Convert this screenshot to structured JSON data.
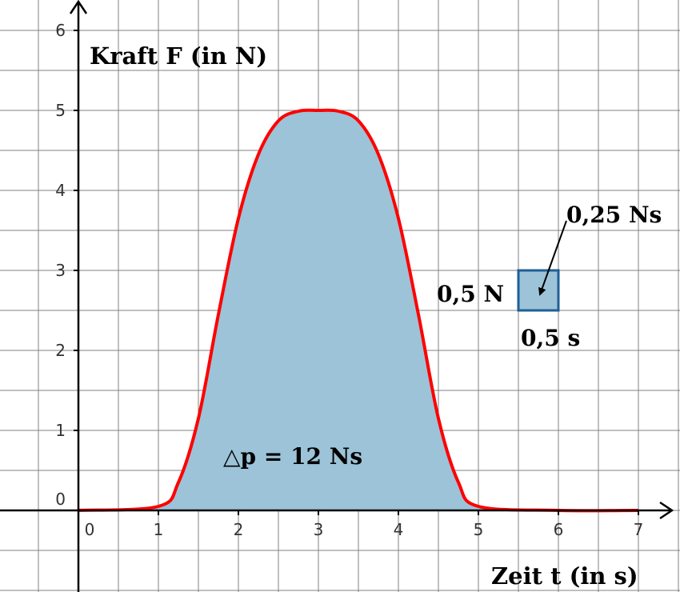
{
  "chart_data": {
    "type": "area",
    "x_axis": {
      "label": "Zeit t (in s)",
      "range": [
        -1,
        7.5
      ],
      "ticks": [
        0,
        1,
        2,
        3,
        4,
        5,
        6,
        7
      ],
      "minor_grid_step": 0.5
    },
    "y_axis": {
      "label": "Kraft F (in N)",
      "range": [
        -1,
        6
      ],
      "ticks": [
        0,
        1,
        2,
        3,
        4,
        5,
        6
      ],
      "minor_grid_step": 0.5
    },
    "grid": true,
    "series": [
      {
        "x": [
          0,
          1,
          1.25,
          1.5,
          1.75,
          2,
          2.25,
          2.5,
          2.75,
          3,
          3.25,
          3.5,
          3.75,
          4,
          4.25,
          4.5,
          4.75,
          5,
          6,
          7
        ],
        "y": [
          0,
          0.05,
          0.35,
          1.15,
          2.45,
          3.65,
          4.45,
          4.87,
          4.99,
          5,
          4.99,
          4.87,
          4.45,
          3.65,
          2.45,
          1.15,
          0.35,
          0.05,
          0,
          0
        ]
      }
    ],
    "filled_area": {
      "from_x": 1,
      "to_x": 5
    },
    "annotations": {
      "impulse": "△p = 12 Ns",
      "area_cell": "0,25 Ns",
      "cell_height": "0,5 N",
      "cell_width": "0,5 s"
    },
    "colors": {
      "curve": "#ff0000",
      "fill": "#9cc3d8",
      "cell_box": "#1f5f94",
      "grid": "#808080",
      "axis": "#000000"
    }
  }
}
